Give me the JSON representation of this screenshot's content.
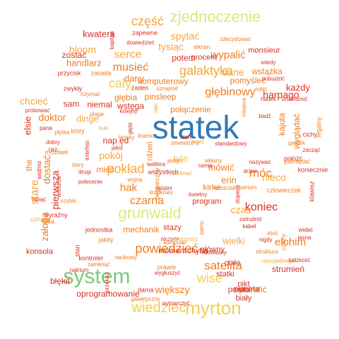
{
  "palette": {
    "red": "#d7301f",
    "orange": "#f07c1e",
    "amber": "#f4a63c",
    "yellow": "#f0d050",
    "lime": "#dde87a",
    "green": "#7dc87a",
    "blue": "#2f79b5"
  },
  "words": [
    {
      "t": "statek",
      "c": "blue"
    },
    {
      "t": "system",
      "c": "green"
    },
    {
      "t": "myrton",
      "c": "yellow"
    },
    {
      "t": "zjednoczenie",
      "c": "lime"
    },
    {
      "t": "grunwald",
      "c": "lime"
    },
    {
      "t": "wiedzieć",
      "c": "yellow"
    },
    {
      "t": "część",
      "c": "amber"
    },
    {
      "t": "cały",
      "c": "yellow"
    },
    {
      "t": "galaktyka",
      "c": "amber"
    },
    {
      "t": "serce",
      "c": "amber"
    },
    {
      "t": "bloom",
      "c": "amber"
    },
    {
      "t": "kwatera",
      "c": "red"
    },
    {
      "t": "spytać",
      "c": "amber"
    },
    {
      "t": "tysiąc",
      "c": "amber"
    },
    {
      "t": "wypalić",
      "c": "orange"
    },
    {
      "t": "dane",
      "c": "amber"
    },
    {
      "t": "głębinowy",
      "c": "orange"
    },
    {
      "t": "harpago",
      "c": "red"
    },
    {
      "t": "móc",
      "c": "orange"
    },
    {
      "t": "koniec",
      "c": "red"
    },
    {
      "t": "nieco",
      "c": "amber"
    },
    {
      "t": "elohim",
      "c": "orange"
    },
    {
      "t": "czas",
      "c": "amber"
    },
    {
      "t": "pokład",
      "c": "amber"
    },
    {
      "t": "czarna",
      "c": "orange"
    },
    {
      "t": "hak",
      "c": "orange"
    },
    {
      "t": "powiedzieć",
      "c": "orange"
    },
    {
      "t": "satelita",
      "c": "orange"
    },
    {
      "t": "wise",
      "c": "yellow"
    },
    {
      "t": "większy",
      "c": "orange"
    },
    {
      "t": "musieć",
      "c": "orange"
    },
    {
      "t": "handlarz",
      "c": "orange"
    },
    {
      "t": "zostać",
      "c": "red"
    },
    {
      "t": "doktor",
      "c": "orange"
    },
    {
      "t": "dinge",
      "c": "amber"
    },
    {
      "t": "niemal",
      "c": "red"
    },
    {
      "t": "chcieć",
      "c": "amber"
    },
    {
      "t": "sam",
      "c": "red"
    },
    {
      "t": "pokój",
      "c": "amber"
    },
    {
      "t": "nap ęd",
      "c": "red"
    },
    {
      "t": "tyle",
      "c": "yellow"
    },
    {
      "t": "mieć",
      "c": "orange"
    },
    {
      "t": "mówić",
      "c": "orange"
    },
    {
      "t": "erin",
      "c": "orange"
    },
    {
      "t": "wielki",
      "c": "amber"
    },
    {
      "t": "kirke",
      "c": "orange"
    },
    {
      "t": "mechanik",
      "c": "orange"
    },
    {
      "t": "błękit",
      "c": "red"
    },
    {
      "t": "potrafić",
      "c": "orange"
    },
    {
      "t": "oprogramowanie",
      "c": "red"
    },
    {
      "t": "planeta",
      "c": "red"
    },
    {
      "t": "strumień",
      "c": "red"
    },
    {
      "t": "konsola",
      "c": "red"
    },
    {
      "t": "pomyśleć",
      "c": "orange"
    },
    {
      "t": "wstążka",
      "c": "orange"
    },
    {
      "t": "każdy",
      "c": "red"
    },
    {
      "t": "dany",
      "c": "orange"
    },
    {
      "t": "głębia",
      "c": "orange"
    },
    {
      "t": "pinsleep",
      "c": "orange"
    },
    {
      "t": "połączenie",
      "c": "orange"
    },
    {
      "t": "komputerowy",
      "c": "orange"
    },
    {
      "t": "potem",
      "c": "red"
    },
    {
      "t": "procent",
      "c": "red"
    },
    {
      "t": "monsieur",
      "c": "red"
    },
    {
      "t": "ciało",
      "c": "red"
    },
    {
      "t": "nikt",
      "c": "red"
    },
    {
      "t": "statki",
      "c": "red"
    },
    {
      "t": "biały",
      "c": "red"
    },
    {
      "t": "prostu",
      "c": "red"
    },
    {
      "t": "chyba",
      "c": "red"
    },
    {
      "t": "główny",
      "c": "red"
    },
    {
      "t": "moment",
      "c": "red"
    },
    {
      "t": "stazy",
      "c": "red"
    },
    {
      "t": "program",
      "c": "red"
    },
    {
      "t": "wyglądać",
      "c": "orange"
    },
    {
      "t": "kajuta",
      "c": "orange"
    },
    {
      "t": "zjednoczenie",
      "c": "lime"
    }
  ],
  "small_words": [
    "zapewne",
    "zdecydować",
    "dowiedzieć",
    "kapitan",
    "ekran",
    "wtedy",
    "przycisk",
    "zasada",
    "zwykły",
    "trzymać",
    "taki",
    "żaden",
    "oznajmić",
    "pobudzić",
    "robić",
    "hades",
    "uruchomić",
    "miejsce",
    "badź",
    "kolejny",
    "plaga",
    "próbować",
    "który",
    "hub",
    "głębi",
    "tansky",
    "pana",
    "płytka",
    "dobry",
    "raz",
    "możliwe",
    "interfejs",
    "jakiś",
    "ksenio",
    "klan",
    "zewnętrzny",
    "twarz",
    "standardowy",
    "legalny",
    "cichy",
    "gatlark",
    "zacząć",
    "połóżć",
    "pamiętać",
    "koniecznie",
    "klawisz",
    "człowieczek",
    "nazywać",
    "własny",
    "zerknąć",
    "drzwi",
    "kontrola",
    "dopiero",
    "imperium",
    "zatrudnić",
    "kabel",
    "ktoś",
    "widać",
    "jasna",
    "czarny",
    "nigdy",
    "struktura",
    "rzeczjednego",
    "ludzkość",
    "środkowy",
    "świetny",
    "bezpieczny",
    "wszystkich",
    "waltera",
    "wojna",
    "polecenie",
    "drugi",
    "stary",
    "widmo",
    "szybki",
    "uznać",
    "wyraźny",
    "kilka",
    "jednostka",
    "jakby",
    "stan",
    "kontroler",
    "naukowy",
    "natrium",
    "niczym",
    "komputer",
    "dokładny",
    "samo",
    "wszyscy",
    "dama",
    "galaktyczny",
    "wystarczyć",
    "prawie",
    "wygłuszyć",
    "przekaz",
    "zamknąć",
    "wpiąć",
    "wreszcie",
    "the",
    "elsie",
    "dostać",
    "stare",
    "pierwsza",
    "załoga",
    "ramię",
    "jeden",
    "wstęga",
    "ostatni",
    "rdzeń",
    "piękny",
    "cóż",
    "lepiej",
    "skok",
    "duży",
    "nat"
  ]
}
